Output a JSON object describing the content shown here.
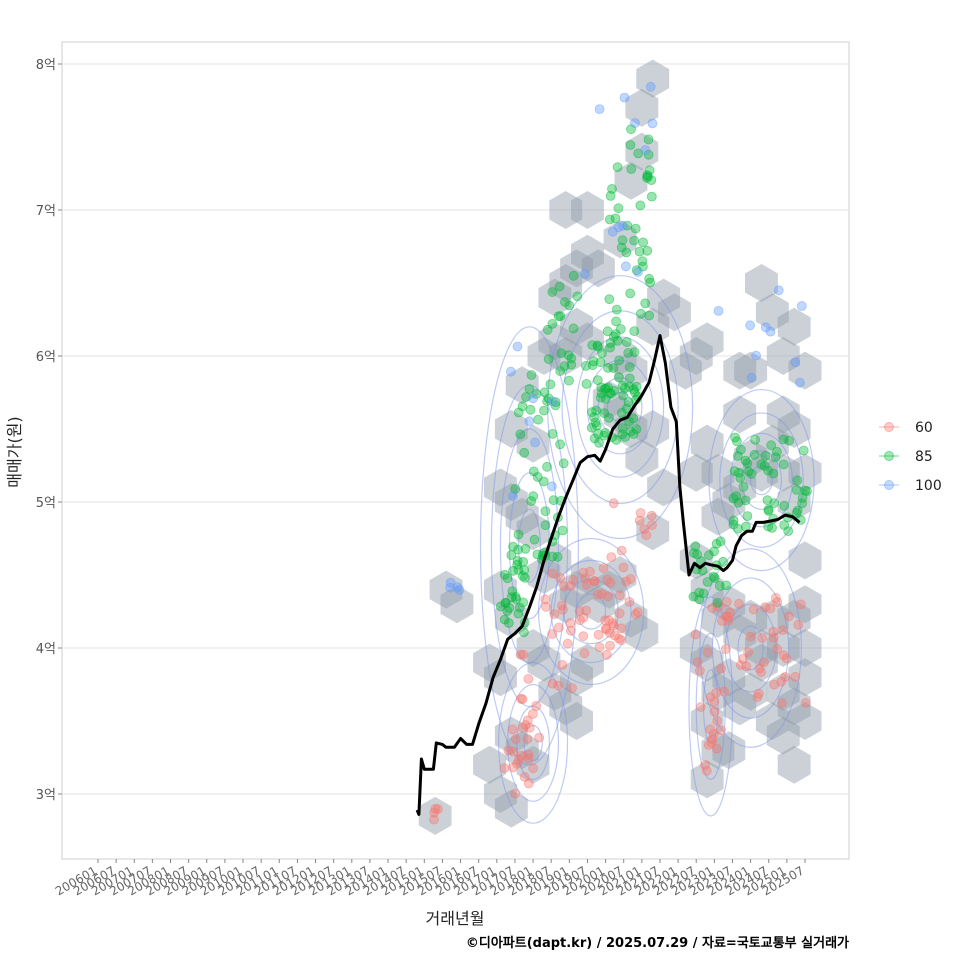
{
  "chart_data": {
    "type": "scatter",
    "title": "",
    "xlabel": "거래년월",
    "ylabel": "매매가(원)",
    "caption": "©디아파트(dapt.kr) / 2025.07.29 / 자료=국토교통부 실거래가",
    "ylim": [
      2.55,
      8.15
    ],
    "xlim": [
      2005.6,
      2026.6
    ],
    "y_ticks": [
      {
        "value": 3,
        "label": "3억"
      },
      {
        "value": 4,
        "label": "4억"
      },
      {
        "value": 5,
        "label": "5억"
      },
      {
        "value": 6,
        "label": "6억"
      },
      {
        "value": 7,
        "label": "7억"
      },
      {
        "value": 8,
        "label": "8억"
      }
    ],
    "x_ticks": [
      {
        "value": 2006.0,
        "label": "200601"
      },
      {
        "value": 2006.5,
        "label": "200607"
      },
      {
        "value": 2007.0,
        "label": "200701"
      },
      {
        "value": 2007.5,
        "label": "200707"
      },
      {
        "value": 2008.0,
        "label": "200801"
      },
      {
        "value": 2008.5,
        "label": "200807"
      },
      {
        "value": 2009.0,
        "label": "200901"
      },
      {
        "value": 2009.5,
        "label": "200907"
      },
      {
        "value": 2010.0,
        "label": "201001"
      },
      {
        "value": 2010.5,
        "label": "201007"
      },
      {
        "value": 2011.0,
        "label": "201101"
      },
      {
        "value": 2011.5,
        "label": "201107"
      },
      {
        "value": 2012.0,
        "label": "201201"
      },
      {
        "value": 2012.5,
        "label": "201207"
      },
      {
        "value": 2013.0,
        "label": "201301"
      },
      {
        "value": 2013.5,
        "label": "201307"
      },
      {
        "value": 2014.0,
        "label": "201401"
      },
      {
        "value": 2014.5,
        "label": "201407"
      },
      {
        "value": 2015.0,
        "label": "201501"
      },
      {
        "value": 2015.5,
        "label": "201507"
      },
      {
        "value": 2016.0,
        "label": "201601"
      },
      {
        "value": 2016.5,
        "label": "201607"
      },
      {
        "value": 2017.0,
        "label": "201701"
      },
      {
        "value": 2017.5,
        "label": "201707"
      },
      {
        "value": 2018.0,
        "label": "201801"
      },
      {
        "value": 2018.5,
        "label": "201807"
      },
      {
        "value": 2019.0,
        "label": "201901"
      },
      {
        "value": 2019.5,
        "label": "201907"
      },
      {
        "value": 2020.0,
        "label": "202001"
      },
      {
        "value": 2020.5,
        "label": "202007"
      },
      {
        "value": 2021.0,
        "label": "202101"
      },
      {
        "value": 2021.5,
        "label": "202107"
      },
      {
        "value": 2022.0,
        "label": "202201"
      },
      {
        "value": 2022.5,
        "label": "202207"
      },
      {
        "value": 2023.0,
        "label": "202301"
      },
      {
        "value": 2023.5,
        "label": "202307"
      },
      {
        "value": 2024.0,
        "label": "202401"
      },
      {
        "value": 2024.5,
        "label": "202407"
      },
      {
        "value": 2025.0,
        "label": "202501"
      },
      {
        "value": 2025.5,
        "label": "202507"
      }
    ],
    "legend": {
      "position": "right",
      "entries": [
        {
          "label": "60",
          "color": "#F8766D"
        },
        {
          "label": "85",
          "color": "#00BA38"
        },
        {
          "label": "100",
          "color": "#619CFF"
        }
      ]
    },
    "trend_line": {
      "name": "moving-average",
      "color": "#000000",
      "points": [
        [
          2014.8,
          2.89
        ],
        [
          2014.85,
          2.86
        ],
        [
          2014.92,
          3.24
        ],
        [
          2015.0,
          3.17
        ],
        [
          2015.25,
          3.17
        ],
        [
          2015.33,
          3.35
        ],
        [
          2015.5,
          3.34
        ],
        [
          2015.6,
          3.32
        ],
        [
          2015.83,
          3.32
        ],
        [
          2016.0,
          3.38
        ],
        [
          2016.17,
          3.34
        ],
        [
          2016.33,
          3.34
        ],
        [
          2016.5,
          3.48
        ],
        [
          2016.7,
          3.62
        ],
        [
          2016.9,
          3.8
        ],
        [
          2017.1,
          3.92
        ],
        [
          2017.3,
          4.06
        ],
        [
          2017.5,
          4.1
        ],
        [
          2017.7,
          4.15
        ],
        [
          2017.9,
          4.28
        ],
        [
          2018.1,
          4.42
        ],
        [
          2018.3,
          4.6
        ],
        [
          2018.5,
          4.75
        ],
        [
          2018.7,
          4.9
        ],
        [
          2018.9,
          5.03
        ],
        [
          2019.1,
          5.15
        ],
        [
          2019.3,
          5.27
        ],
        [
          2019.5,
          5.31
        ],
        [
          2019.7,
          5.32
        ],
        [
          2019.85,
          5.28
        ],
        [
          2020.0,
          5.36
        ],
        [
          2020.2,
          5.5
        ],
        [
          2020.4,
          5.56
        ],
        [
          2020.6,
          5.58
        ],
        [
          2020.8,
          5.66
        ],
        [
          2021.0,
          5.73
        ],
        [
          2021.2,
          5.82
        ],
        [
          2021.35,
          5.97
        ],
        [
          2021.5,
          6.14
        ],
        [
          2021.65,
          5.95
        ],
        [
          2021.8,
          5.65
        ],
        [
          2021.95,
          5.55
        ],
        [
          2022.05,
          5.1
        ],
        [
          2022.15,
          4.85
        ],
        [
          2022.3,
          4.5
        ],
        [
          2022.45,
          4.58
        ],
        [
          2022.6,
          4.55
        ],
        [
          2022.75,
          4.58
        ],
        [
          2022.9,
          4.57
        ],
        [
          2023.1,
          4.56
        ],
        [
          2023.25,
          4.53
        ],
        [
          2023.35,
          4.55
        ],
        [
          2023.5,
          4.6
        ],
        [
          2023.6,
          4.7
        ],
        [
          2023.75,
          4.77
        ],
        [
          2023.9,
          4.8
        ],
        [
          2024.05,
          4.8
        ],
        [
          2024.15,
          4.86
        ],
        [
          2024.35,
          4.86
        ],
        [
          2024.55,
          4.87
        ],
        [
          2024.75,
          4.88
        ],
        [
          2024.95,
          4.91
        ],
        [
          2025.15,
          4.9
        ],
        [
          2025.35,
          4.86
        ]
      ]
    },
    "hexbin_centers": [
      [
        2018.3,
        6.0
      ],
      [
        2018.6,
        6.1
      ],
      [
        2018.9,
        6.0
      ],
      [
        2019.2,
        6.2
      ],
      [
        2019.5,
        6.1
      ],
      [
        2018.6,
        6.4
      ],
      [
        2018.9,
        6.5
      ],
      [
        2019.2,
        6.6
      ],
      [
        2019.5,
        6.7
      ],
      [
        2019.8,
        6.6
      ],
      [
        2018.9,
        7.0
      ],
      [
        2019.5,
        7.0
      ],
      [
        2020.4,
        6.8
      ],
      [
        2020.7,
        7.2
      ],
      [
        2021.0,
        7.4
      ],
      [
        2021.0,
        7.7
      ],
      [
        2021.3,
        7.9
      ],
      [
        2021.6,
        6.4
      ],
      [
        2021.3,
        6.2
      ],
      [
        2020.1,
        5.7
      ],
      [
        2020.4,
        5.6
      ],
      [
        2020.7,
        5.5
      ],
      [
        2021.0,
        5.3
      ],
      [
        2021.3,
        5.5
      ],
      [
        2020.4,
        6.0
      ],
      [
        2020.7,
        5.9
      ],
      [
        2018.0,
        5.4
      ],
      [
        2017.4,
        5.5
      ],
      [
        2017.7,
        5.8
      ],
      [
        2017.1,
        5.1
      ],
      [
        2017.4,
        5.0
      ],
      [
        2017.7,
        4.9
      ],
      [
        2018.0,
        4.8
      ],
      [
        2018.3,
        4.5
      ],
      [
        2018.6,
        4.6
      ],
      [
        2018.9,
        4.3
      ],
      [
        2019.2,
        4.4
      ],
      [
        2019.5,
        4.5
      ],
      [
        2019.8,
        4.3
      ],
      [
        2020.1,
        4.4
      ],
      [
        2020.4,
        4.5
      ],
      [
        2020.7,
        4.2
      ],
      [
        2021.0,
        4.1
      ],
      [
        2021.3,
        4.8
      ],
      [
        2021.6,
        5.1
      ],
      [
        2018.0,
        4.0
      ],
      [
        2018.3,
        3.9
      ],
      [
        2018.6,
        3.7
      ],
      [
        2018.9,
        3.6
      ],
      [
        2019.2,
        3.8
      ],
      [
        2019.5,
        3.9
      ],
      [
        2017.4,
        3.4
      ],
      [
        2017.7,
        3.3
      ],
      [
        2018.0,
        3.2
      ],
      [
        2017.1,
        3.0
      ],
      [
        2017.4,
        2.9
      ],
      [
        2016.8,
        3.2
      ],
      [
        2015.6,
        4.4
      ],
      [
        2015.9,
        4.3
      ],
      [
        2015.3,
        2.85
      ],
      [
        2017.1,
        4.4
      ],
      [
        2017.4,
        4.2
      ],
      [
        2017.1,
        3.8
      ],
      [
        2019.2,
        3.5
      ],
      [
        2016.8,
        3.9
      ],
      [
        2022.5,
        5.2
      ],
      [
        2022.8,
        5.4
      ],
      [
        2023.1,
        5.2
      ],
      [
        2023.4,
        5.0
      ],
      [
        2023.7,
        5.1
      ],
      [
        2024.0,
        5.3
      ],
      [
        2024.3,
        5.2
      ],
      [
        2024.6,
        5.4
      ],
      [
        2024.9,
        5.2
      ],
      [
        2025.2,
        5.0
      ],
      [
        2025.5,
        5.2
      ],
      [
        2025.2,
        5.5
      ],
      [
        2024.9,
        5.6
      ],
      [
        2023.7,
        5.6
      ],
      [
        2023.1,
        4.9
      ],
      [
        2022.5,
        4.6
      ],
      [
        2022.8,
        4.4
      ],
      [
        2023.1,
        4.2
      ],
      [
        2023.4,
        4.3
      ],
      [
        2023.7,
        4.1
      ],
      [
        2024.0,
        4.2
      ],
      [
        2024.3,
        4.0
      ],
      [
        2024.6,
        4.2
      ],
      [
        2024.9,
        4.0
      ],
      [
        2025.2,
        4.2
      ],
      [
        2025.5,
        4.3
      ],
      [
        2022.5,
        4.0
      ],
      [
        2022.8,
        3.9
      ],
      [
        2023.1,
        3.7
      ],
      [
        2023.4,
        3.8
      ],
      [
        2023.7,
        3.6
      ],
      [
        2024.0,
        3.7
      ],
      [
        2024.3,
        3.9
      ],
      [
        2024.6,
        3.5
      ],
      [
        2024.9,
        3.7
      ],
      [
        2025.2,
        3.6
      ],
      [
        2025.5,
        3.8
      ],
      [
        2023.1,
        3.3
      ],
      [
        2022.8,
        3.1
      ],
      [
        2022.8,
        3.5
      ],
      [
        2023.4,
        3.3
      ],
      [
        2024.9,
        3.4
      ],
      [
        2025.5,
        3.5
      ],
      [
        2025.2,
        3.2
      ],
      [
        2023.7,
        5.9
      ],
      [
        2024.0,
        5.9
      ],
      [
        2024.6,
        6.3
      ],
      [
        2024.3,
        6.5
      ],
      [
        2025.2,
        6.2
      ],
      [
        2024.9,
        6.0
      ],
      [
        2025.5,
        5.9
      ],
      [
        2022.2,
        5.9
      ],
      [
        2022.5,
        6.0
      ],
      [
        2022.8,
        6.1
      ],
      [
        2021.9,
        6.3
      ],
      [
        2025.5,
        4.6
      ],
      [
        2025.5,
        4.0
      ]
    ],
    "density_contours": [
      {
        "cx": 2020.4,
        "cy": 5.65,
        "rx": [
          0.35,
          0.6,
          0.9,
          1.2,
          1.6,
          2.0
        ],
        "ry": [
          0.1,
          0.2,
          0.32,
          0.48,
          0.66,
          0.9
        ]
      },
      {
        "cx": 2017.9,
        "cy": 4.7,
        "rx": [
          0.3,
          0.55,
          0.8,
          1.05,
          1.35
        ],
        "ry": [
          0.25,
          0.5,
          0.8,
          1.1,
          1.5
        ]
      },
      {
        "cx": 2018.0,
        "cy": 3.35,
        "rx": [
          0.25,
          0.45,
          0.7,
          0.95
        ],
        "ry": [
          0.12,
          0.25,
          0.4,
          0.55
        ]
      },
      {
        "cx": 2019.6,
        "cy": 4.25,
        "rx": [
          0.4,
          0.75,
          1.1,
          1.45
        ],
        "ry": [
          0.12,
          0.22,
          0.35,
          0.5
        ]
      },
      {
        "cx": 2024.3,
        "cy": 5.15,
        "rx": [
          0.3,
          0.55,
          0.85,
          1.15,
          1.45
        ],
        "ry": [
          0.1,
          0.2,
          0.32,
          0.46,
          0.62
        ]
      },
      {
        "cx": 2024.0,
        "cy": 4.0,
        "rx": [
          0.35,
          0.7,
          1.05,
          1.4
        ],
        "ry": [
          0.15,
          0.3,
          0.48,
          0.68
        ]
      },
      {
        "cx": 2022.9,
        "cy": 3.6,
        "rx": [
          0.2,
          0.4,
          0.6
        ],
        "ry": [
          0.25,
          0.5,
          0.75
        ]
      }
    ],
    "point_clusters": [
      {
        "series": "60",
        "count": 55,
        "x": [
          2018.3,
          2020.9
        ],
        "y": [
          3.95,
          4.55
        ]
      },
      {
        "series": "60",
        "count": 22,
        "x": [
          2017.2,
          2018.2
        ],
        "y": [
          3.0,
          3.55
        ]
      },
      {
        "series": "60",
        "count": 10,
        "x": [
          2017.5,
          2019.2
        ],
        "y": [
          3.6,
          4.0
        ]
      },
      {
        "series": "60",
        "count": 4,
        "x": [
          2015.2,
          2015.5
        ],
        "y": [
          2.8,
          2.9
        ]
      },
      {
        "series": "60",
        "count": 50,
        "x": [
          2022.4,
          2025.6
        ],
        "y": [
          3.6,
          4.35
        ]
      },
      {
        "series": "60",
        "count": 12,
        "x": [
          2022.6,
          2023.2
        ],
        "y": [
          3.1,
          3.6
        ]
      },
      {
        "series": "60",
        "count": 10,
        "x": [
          2020.1,
          2021.3
        ],
        "y": [
          4.55,
          5.0
        ]
      },
      {
        "series": "85",
        "count": 70,
        "x": [
          2019.6,
          2020.9
        ],
        "y": [
          5.4,
          6.2
        ]
      },
      {
        "series": "85",
        "count": 45,
        "x": [
          2017.5,
          2018.9
        ],
        "y": [
          4.6,
          5.9
        ]
      },
      {
        "series": "85",
        "count": 30,
        "x": [
          2017.1,
          2017.8
        ],
        "y": [
          4.1,
          4.7
        ]
      },
      {
        "series": "85",
        "count": 40,
        "x": [
          2020.0,
          2021.3
        ],
        "y": [
          6.2,
          7.6
        ]
      },
      {
        "series": "85",
        "count": 20,
        "x": [
          2018.4,
          2019.6
        ],
        "y": [
          5.8,
          6.6
        ]
      },
      {
        "series": "85",
        "count": 55,
        "x": [
          2023.5,
          2025.6
        ],
        "y": [
          4.8,
          5.5
        ]
      },
      {
        "series": "85",
        "count": 22,
        "x": [
          2022.4,
          2023.4
        ],
        "y": [
          4.3,
          4.75
        ]
      },
      {
        "series": "100",
        "count": 12,
        "x": [
          2019.4,
          2021.3
        ],
        "y": [
          6.5,
          7.9
        ]
      },
      {
        "series": "100",
        "count": 10,
        "x": [
          2023.0,
          2025.5
        ],
        "y": [
          5.7,
          6.5
        ]
      },
      {
        "series": "100",
        "count": 8,
        "x": [
          2017.3,
          2018.6
        ],
        "y": [
          5.0,
          6.1
        ]
      },
      {
        "series": "100",
        "count": 4,
        "x": [
          2015.6,
          2016.2
        ],
        "y": [
          4.35,
          4.45
        ]
      }
    ]
  }
}
